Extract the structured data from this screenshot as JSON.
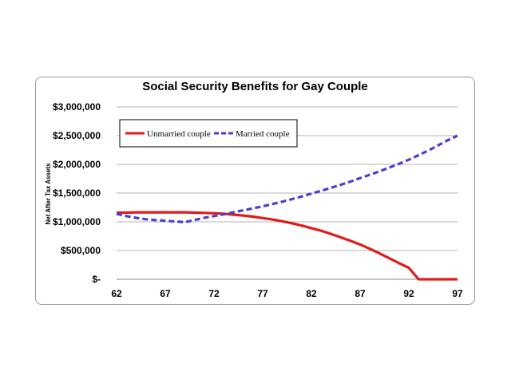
{
  "chart_data": {
    "type": "line",
    "title": "Social Security Benefits for Gay Couple",
    "ylabel": "Net After Tax Assets",
    "xlabel": "",
    "x_ticks": [
      "62",
      "67",
      "72",
      "77",
      "82",
      "87",
      "92",
      "97"
    ],
    "y_ticks": [
      "$-",
      "$500,000",
      "$1,000,000",
      "$1,500,000",
      "$2,000,000",
      "$2,500,000",
      "$3,000,000"
    ],
    "xlim": [
      62,
      97
    ],
    "ylim": [
      0,
      3000000
    ],
    "grid": "horizontal",
    "legend": "top-left",
    "series": [
      {
        "name": "Unmarried couple",
        "color": "#e01b1b",
        "style": "solid",
        "points": [
          [
            62,
            1160000
          ],
          [
            63,
            1160000
          ],
          [
            64,
            1165000
          ],
          [
            65,
            1165000
          ],
          [
            66,
            1165000
          ],
          [
            67,
            1165000
          ],
          [
            68,
            1165000
          ],
          [
            69,
            1165000
          ],
          [
            70,
            1160000
          ],
          [
            71,
            1155000
          ],
          [
            72,
            1150000
          ],
          [
            73,
            1140000
          ],
          [
            74,
            1125000
          ],
          [
            75,
            1110000
          ],
          [
            76,
            1090000
          ],
          [
            77,
            1065000
          ],
          [
            78,
            1040000
          ],
          [
            79,
            1010000
          ],
          [
            80,
            975000
          ],
          [
            81,
            935000
          ],
          [
            82,
            890000
          ],
          [
            83,
            845000
          ],
          [
            84,
            790000
          ],
          [
            85,
            730000
          ],
          [
            86,
            670000
          ],
          [
            87,
            605000
          ],
          [
            88,
            530000
          ],
          [
            89,
            450000
          ],
          [
            90,
            365000
          ],
          [
            91,
            280000
          ],
          [
            92,
            200000
          ],
          [
            93,
            0
          ],
          [
            94,
            0
          ],
          [
            95,
            0
          ],
          [
            96,
            0
          ],
          [
            97,
            0
          ]
        ]
      },
      {
        "name": "Married couple",
        "color": "#4a3fcf",
        "style": "dashed",
        "points": [
          [
            62,
            1140000
          ],
          [
            63,
            1100000
          ],
          [
            64,
            1070000
          ],
          [
            65,
            1045000
          ],
          [
            66,
            1030000
          ],
          [
            67,
            1020000
          ],
          [
            68,
            1005000
          ],
          [
            69,
            995000
          ],
          [
            70,
            1030000
          ],
          [
            71,
            1070000
          ],
          [
            72,
            1100000
          ],
          [
            73,
            1130000
          ],
          [
            74,
            1165000
          ],
          [
            75,
            1200000
          ],
          [
            76,
            1235000
          ],
          [
            77,
            1270000
          ],
          [
            78,
            1310000
          ],
          [
            79,
            1350000
          ],
          [
            80,
            1395000
          ],
          [
            81,
            1440000
          ],
          [
            82,
            1490000
          ],
          [
            83,
            1540000
          ],
          [
            84,
            1590000
          ],
          [
            85,
            1645000
          ],
          [
            86,
            1700000
          ],
          [
            87,
            1760000
          ],
          [
            88,
            1820000
          ],
          [
            89,
            1880000
          ],
          [
            90,
            1945000
          ],
          [
            91,
            2010000
          ],
          [
            92,
            2080000
          ],
          [
            93,
            2160000
          ],
          [
            94,
            2240000
          ],
          [
            95,
            2330000
          ],
          [
            96,
            2420000
          ],
          [
            97,
            2500000
          ]
        ]
      }
    ]
  }
}
